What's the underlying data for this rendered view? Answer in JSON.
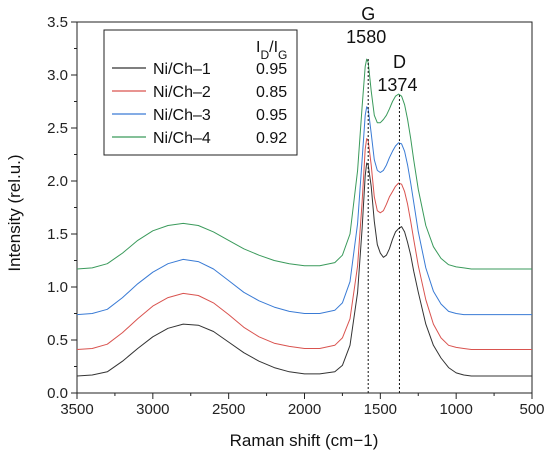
{
  "chart_data": {
    "type": "line",
    "title": "",
    "xlabel": "Raman shift (cm−1)",
    "ylabel": "Intensity (rel.u.)",
    "xlim": [
      3500,
      500
    ],
    "ylim": [
      0,
      3.5
    ],
    "x_reversed": true,
    "x_ticks": [
      "3500",
      "3000",
      "2500",
      "2000",
      "1500",
      "1000",
      "500"
    ],
    "y_ticks": [
      "0.0",
      "0.5",
      "1.0",
      "1.5",
      "2.0",
      "2.5",
      "3.0",
      "3.5"
    ],
    "legend": {
      "placement": "top-left",
      "header": "I_D/I_G",
      "header_main": "I",
      "header_sub1": "D",
      "header_mid": "/I",
      "header_sub2": "G"
    },
    "annotations": {
      "g_letter": "G",
      "g_value": "1580",
      "g_shift": 1580,
      "d_letter": "D",
      "d_value": "1374",
      "d_shift": 1374
    },
    "series": [
      {
        "name": "Ni/Ch–1",
        "ratio": "0.95",
        "color": "#333333",
        "points": [
          [
            3500,
            0.16
          ],
          [
            3400,
            0.17
          ],
          [
            3300,
            0.2
          ],
          [
            3200,
            0.3
          ],
          [
            3100,
            0.42
          ],
          [
            3000,
            0.53
          ],
          [
            2900,
            0.61
          ],
          [
            2800,
            0.65
          ],
          [
            2700,
            0.64
          ],
          [
            2600,
            0.58
          ],
          [
            2500,
            0.48
          ],
          [
            2400,
            0.38
          ],
          [
            2300,
            0.3
          ],
          [
            2200,
            0.24
          ],
          [
            2100,
            0.2
          ],
          [
            2000,
            0.18
          ],
          [
            1900,
            0.18
          ],
          [
            1800,
            0.2
          ],
          [
            1750,
            0.26
          ],
          [
            1700,
            0.45
          ],
          [
            1650,
            0.95
          ],
          [
            1620,
            1.55
          ],
          [
            1600,
            2.05
          ],
          [
            1590,
            2.17
          ],
          [
            1580,
            2.15
          ],
          [
            1560,
            1.95
          ],
          [
            1540,
            1.62
          ],
          [
            1520,
            1.4
          ],
          [
            1500,
            1.32
          ],
          [
            1480,
            1.28
          ],
          [
            1460,
            1.3
          ],
          [
            1440,
            1.36
          ],
          [
            1420,
            1.45
          ],
          [
            1400,
            1.52
          ],
          [
            1380,
            1.55
          ],
          [
            1360,
            1.57
          ],
          [
            1340,
            1.52
          ],
          [
            1320,
            1.42
          ],
          [
            1300,
            1.3
          ],
          [
            1280,
            1.15
          ],
          [
            1250,
            0.95
          ],
          [
            1200,
            0.65
          ],
          [
            1150,
            0.45
          ],
          [
            1100,
            0.33
          ],
          [
            1050,
            0.24
          ],
          [
            1000,
            0.19
          ],
          [
            950,
            0.17
          ],
          [
            900,
            0.16
          ],
          [
            800,
            0.16
          ],
          [
            700,
            0.16
          ],
          [
            600,
            0.16
          ],
          [
            500,
            0.16
          ]
        ]
      },
      {
        "name": "Ni/Ch–2",
        "ratio": "0.85",
        "color": "#d9534f",
        "points": [
          [
            3500,
            0.41
          ],
          [
            3400,
            0.42
          ],
          [
            3300,
            0.46
          ],
          [
            3200,
            0.57
          ],
          [
            3100,
            0.7
          ],
          [
            3000,
            0.82
          ],
          [
            2900,
            0.9
          ],
          [
            2800,
            0.94
          ],
          [
            2700,
            0.92
          ],
          [
            2600,
            0.85
          ],
          [
            2500,
            0.74
          ],
          [
            2400,
            0.62
          ],
          [
            2300,
            0.53
          ],
          [
            2200,
            0.47
          ],
          [
            2100,
            0.44
          ],
          [
            2000,
            0.42
          ],
          [
            1900,
            0.42
          ],
          [
            1800,
            0.45
          ],
          [
            1750,
            0.52
          ],
          [
            1700,
            0.7
          ],
          [
            1650,
            1.2
          ],
          [
            1620,
            1.8
          ],
          [
            1600,
            2.3
          ],
          [
            1590,
            2.4
          ],
          [
            1580,
            2.38
          ],
          [
            1560,
            2.15
          ],
          [
            1540,
            1.85
          ],
          [
            1520,
            1.72
          ],
          [
            1500,
            1.7
          ],
          [
            1480,
            1.72
          ],
          [
            1460,
            1.78
          ],
          [
            1440,
            1.85
          ],
          [
            1420,
            1.9
          ],
          [
            1400,
            1.95
          ],
          [
            1380,
            1.98
          ],
          [
            1360,
            1.97
          ],
          [
            1340,
            1.9
          ],
          [
            1320,
            1.78
          ],
          [
            1300,
            1.62
          ],
          [
            1280,
            1.45
          ],
          [
            1250,
            1.2
          ],
          [
            1200,
            0.88
          ],
          [
            1150,
            0.65
          ],
          [
            1100,
            0.52
          ],
          [
            1050,
            0.45
          ],
          [
            1000,
            0.43
          ],
          [
            950,
            0.42
          ],
          [
            900,
            0.41
          ],
          [
            800,
            0.41
          ],
          [
            700,
            0.41
          ],
          [
            600,
            0.41
          ],
          [
            500,
            0.41
          ]
        ]
      },
      {
        "name": "Ni/Ch–3",
        "ratio": "0.95",
        "color": "#3a7bd5",
        "points": [
          [
            3500,
            0.74
          ],
          [
            3400,
            0.75
          ],
          [
            3300,
            0.79
          ],
          [
            3200,
            0.9
          ],
          [
            3100,
            1.03
          ],
          [
            3000,
            1.14
          ],
          [
            2900,
            1.22
          ],
          [
            2800,
            1.26
          ],
          [
            2700,
            1.24
          ],
          [
            2600,
            1.17
          ],
          [
            2500,
            1.06
          ],
          [
            2400,
            0.95
          ],
          [
            2300,
            0.87
          ],
          [
            2200,
            0.81
          ],
          [
            2100,
            0.77
          ],
          [
            2000,
            0.75
          ],
          [
            1900,
            0.75
          ],
          [
            1800,
            0.78
          ],
          [
            1750,
            0.85
          ],
          [
            1700,
            1.05
          ],
          [
            1650,
            1.6
          ],
          [
            1620,
            2.2
          ],
          [
            1600,
            2.62
          ],
          [
            1590,
            2.7
          ],
          [
            1580,
            2.68
          ],
          [
            1560,
            2.45
          ],
          [
            1540,
            2.2
          ],
          [
            1520,
            2.1
          ],
          [
            1500,
            2.08
          ],
          [
            1480,
            2.1
          ],
          [
            1460,
            2.15
          ],
          [
            1440,
            2.22
          ],
          [
            1420,
            2.28
          ],
          [
            1400,
            2.33
          ],
          [
            1380,
            2.36
          ],
          [
            1360,
            2.35
          ],
          [
            1340,
            2.28
          ],
          [
            1320,
            2.15
          ],
          [
            1300,
            1.98
          ],
          [
            1280,
            1.8
          ],
          [
            1250,
            1.52
          ],
          [
            1200,
            1.18
          ],
          [
            1150,
            0.96
          ],
          [
            1100,
            0.84
          ],
          [
            1050,
            0.77
          ],
          [
            1000,
            0.75
          ],
          [
            950,
            0.74
          ],
          [
            900,
            0.74
          ],
          [
            800,
            0.74
          ],
          [
            700,
            0.74
          ],
          [
            600,
            0.74
          ],
          [
            500,
            0.74
          ]
        ]
      },
      {
        "name": "Ni/Ch–4",
        "ratio": "0.92",
        "color": "#3a9a5b",
        "points": [
          [
            3500,
            1.17
          ],
          [
            3400,
            1.18
          ],
          [
            3300,
            1.22
          ],
          [
            3200,
            1.32
          ],
          [
            3100,
            1.44
          ],
          [
            3000,
            1.53
          ],
          [
            2900,
            1.58
          ],
          [
            2800,
            1.6
          ],
          [
            2700,
            1.58
          ],
          [
            2600,
            1.52
          ],
          [
            2500,
            1.44
          ],
          [
            2400,
            1.36
          ],
          [
            2300,
            1.3
          ],
          [
            2200,
            1.25
          ],
          [
            2100,
            1.22
          ],
          [
            2000,
            1.2
          ],
          [
            1900,
            1.2
          ],
          [
            1800,
            1.23
          ],
          [
            1750,
            1.3
          ],
          [
            1700,
            1.5
          ],
          [
            1650,
            2.1
          ],
          [
            1620,
            2.7
          ],
          [
            1600,
            3.08
          ],
          [
            1590,
            3.15
          ],
          [
            1580,
            3.12
          ],
          [
            1560,
            2.85
          ],
          [
            1540,
            2.62
          ],
          [
            1520,
            2.55
          ],
          [
            1500,
            2.55
          ],
          [
            1480,
            2.58
          ],
          [
            1460,
            2.62
          ],
          [
            1440,
            2.68
          ],
          [
            1420,
            2.75
          ],
          [
            1400,
            2.8
          ],
          [
            1380,
            2.82
          ],
          [
            1360,
            2.8
          ],
          [
            1340,
            2.72
          ],
          [
            1320,
            2.58
          ],
          [
            1300,
            2.4
          ],
          [
            1280,
            2.2
          ],
          [
            1250,
            1.92
          ],
          [
            1200,
            1.58
          ],
          [
            1150,
            1.38
          ],
          [
            1100,
            1.27
          ],
          [
            1050,
            1.21
          ],
          [
            1000,
            1.19
          ],
          [
            950,
            1.18
          ],
          [
            900,
            1.17
          ],
          [
            800,
            1.17
          ],
          [
            700,
            1.17
          ],
          [
            600,
            1.17
          ],
          [
            500,
            1.17
          ]
        ]
      }
    ]
  }
}
